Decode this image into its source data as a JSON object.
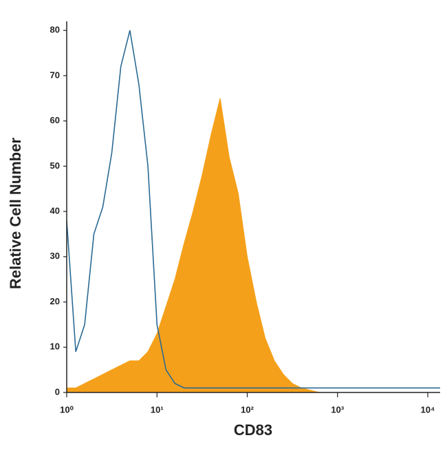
{
  "chart_data": {
    "type": "area",
    "x_label": "CD83",
    "y_label": "Relative Cell Number",
    "log_x": true,
    "xlim": [
      1,
      13700
    ],
    "ylim": [
      0,
      82
    ],
    "xticks": [
      {
        "value": 1,
        "label": "10⁰"
      },
      {
        "value": 10,
        "label": "10¹"
      },
      {
        "value": 100,
        "label": "10²"
      },
      {
        "value": 1000,
        "label": "10³"
      },
      {
        "value": 10000,
        "label": "10⁴"
      }
    ],
    "yticks": [
      0,
      10,
      20,
      30,
      40,
      50,
      60,
      70,
      80
    ],
    "x": [
      1,
      1.26,
      1.58,
      2,
      2.51,
      3.16,
      3.98,
      5.01,
      6.31,
      7.94,
      10,
      12.6,
      15.8,
      20,
      25.1,
      31.6,
      39.8,
      50.1,
      63.1,
      79.4,
      100,
      126,
      158,
      200,
      251,
      316,
      398,
      501,
      631,
      794,
      1000,
      1580,
      2510,
      3980,
      6310,
      10000,
      13700
    ],
    "series": [
      {
        "color": "#f5a01a",
        "filled": true,
        "values": [
          1,
          1,
          2,
          3,
          4,
          5,
          6,
          7,
          7,
          9,
          13,
          19,
          25,
          33,
          40,
          48,
          57,
          65,
          52,
          44,
          30,
          20,
          12,
          7,
          4,
          2,
          1,
          0.5,
          0,
          0,
          0,
          0,
          0,
          0,
          0,
          0,
          0
        ]
      },
      {
        "color": "#2a6a94",
        "filled": false,
        "values": [
          38,
          9,
          15,
          35,
          41,
          53,
          72,
          80,
          68,
          50,
          15,
          5,
          2,
          1,
          1,
          1,
          1,
          1,
          1,
          1,
          1,
          1,
          1,
          1,
          1,
          1,
          1,
          1,
          1,
          1,
          1,
          1,
          1,
          1,
          1,
          1,
          1
        ]
      }
    ]
  }
}
